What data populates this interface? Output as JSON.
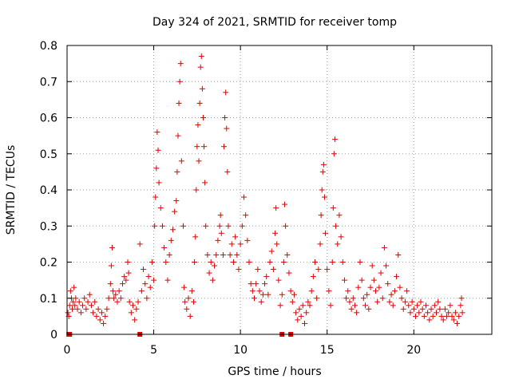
{
  "chart_data": {
    "type": "scatter",
    "title": "Day 324 of 2021, SRMTID for receiver tomp",
    "xlabel": "GPS time / hours",
    "ylabel": "SRMTID / TECUs",
    "xlim": [
      0,
      24.5
    ],
    "ylim": [
      0,
      0.8
    ],
    "xticks": [
      0,
      5,
      10,
      15,
      20
    ],
    "xtick_labels": [
      "0",
      "5",
      "10",
      "15",
      "20"
    ],
    "yticks": [
      0,
      0.1,
      0.2,
      0.3,
      0.4,
      0.5,
      0.6,
      0.7,
      0.8
    ],
    "ytick_labels": [
      "0",
      "0.1",
      "0.2",
      "0.3",
      "0.4",
      "0.5",
      "0.6",
      "0.7",
      "0.8"
    ],
    "grid": true,
    "marker": "plus",
    "color": "#e00000",
    "series": [
      {
        "name": "SRMTID",
        "points": [
          [
            0.05,
            0.06
          ],
          [
            0.1,
            0.05
          ],
          [
            0.15,
            0.08
          ],
          [
            0.2,
            0.12
          ],
          [
            0.25,
            0.1
          ],
          [
            0.3,
            0.07
          ],
          [
            0.35,
            0.09
          ],
          [
            0.4,
            0.13
          ],
          [
            0.45,
            0.08
          ],
          [
            0.5,
            0.1
          ],
          [
            0.6,
            0.07
          ],
          [
            0.7,
            0.09
          ],
          [
            0.8,
            0.06
          ],
          [
            0.9,
            0.08
          ],
          [
            1.0,
            0.1
          ],
          [
            1.1,
            0.07
          ],
          [
            1.2,
            0.09
          ],
          [
            1.3,
            0.11
          ],
          [
            1.4,
            0.08
          ],
          [
            1.5,
            0.06
          ],
          [
            1.6,
            0.09
          ],
          [
            1.7,
            0.05
          ],
          [
            1.8,
            0.07
          ],
          [
            1.9,
            0.04
          ],
          [
            2.0,
            0.06
          ],
          [
            2.1,
            0.03
          ],
          [
            2.2,
            0.05
          ],
          [
            2.3,
            0.07
          ],
          [
            2.4,
            0.1
          ],
          [
            2.5,
            0.14
          ],
          [
            2.55,
            0.19
          ],
          [
            2.6,
            0.24
          ],
          [
            2.65,
            0.12
          ],
          [
            2.7,
            0.1
          ],
          [
            2.8,
            0.11
          ],
          [
            2.9,
            0.09
          ],
          [
            3.0,
            0.12
          ],
          [
            3.1,
            0.1
          ],
          [
            3.2,
            0.14
          ],
          [
            3.3,
            0.16
          ],
          [
            3.4,
            0.15
          ],
          [
            3.5,
            0.2
          ],
          [
            3.55,
            0.17
          ],
          [
            3.6,
            0.09
          ],
          [
            3.7,
            0.06
          ],
          [
            3.8,
            0.08
          ],
          [
            3.9,
            0.04
          ],
          [
            4.0,
            0.07
          ],
          [
            4.1,
            0.09
          ],
          [
            4.2,
            0.25
          ],
          [
            4.3,
            0.12
          ],
          [
            4.4,
            0.18
          ],
          [
            4.5,
            0.14
          ],
          [
            4.6,
            0.1
          ],
          [
            4.7,
            0.16
          ],
          [
            4.8,
            0.13
          ],
          [
            4.9,
            0.2
          ],
          [
            5.0,
            0.15
          ],
          [
            5.05,
            0.3
          ],
          [
            5.1,
            0.38
          ],
          [
            5.15,
            0.46
          ],
          [
            5.2,
            0.56
          ],
          [
            5.25,
            0.51
          ],
          [
            5.3,
            0.42
          ],
          [
            5.4,
            0.35
          ],
          [
            5.5,
            0.3
          ],
          [
            5.6,
            0.24
          ],
          [
            5.7,
            0.2
          ],
          [
            5.8,
            0.15
          ],
          [
            5.9,
            0.22
          ],
          [
            6.0,
            0.26
          ],
          [
            6.1,
            0.29
          ],
          [
            6.2,
            0.34
          ],
          [
            6.3,
            0.37
          ],
          [
            6.35,
            0.45
          ],
          [
            6.4,
            0.55
          ],
          [
            6.45,
            0.64
          ],
          [
            6.5,
            0.7
          ],
          [
            6.55,
            0.75
          ],
          [
            6.6,
            0.48
          ],
          [
            6.7,
            0.3
          ],
          [
            6.75,
            0.13
          ],
          [
            6.8,
            0.09
          ],
          [
            6.9,
            0.07
          ],
          [
            7.0,
            0.1
          ],
          [
            7.1,
            0.05
          ],
          [
            7.2,
            0.12
          ],
          [
            7.3,
            0.09
          ],
          [
            7.35,
            0.2
          ],
          [
            7.4,
            0.27
          ],
          [
            7.45,
            0.4
          ],
          [
            7.5,
            0.52
          ],
          [
            7.55,
            0.58
          ],
          [
            7.6,
            0.48
          ],
          [
            7.65,
            0.64
          ],
          [
            7.7,
            0.74
          ],
          [
            7.75,
            0.77
          ],
          [
            7.8,
            0.68
          ],
          [
            7.85,
            0.6
          ],
          [
            7.9,
            0.52
          ],
          [
            7.95,
            0.42
          ],
          [
            8.0,
            0.3
          ],
          [
            8.1,
            0.22
          ],
          [
            8.2,
            0.17
          ],
          [
            8.3,
            0.2
          ],
          [
            8.4,
            0.15
          ],
          [
            8.5,
            0.19
          ],
          [
            8.6,
            0.22
          ],
          [
            8.7,
            0.26
          ],
          [
            8.8,
            0.3
          ],
          [
            8.85,
            0.33
          ],
          [
            8.9,
            0.28
          ],
          [
            9.0,
            0.22
          ],
          [
            9.05,
            0.52
          ],
          [
            9.1,
            0.6
          ],
          [
            9.15,
            0.67
          ],
          [
            9.2,
            0.57
          ],
          [
            9.25,
            0.45
          ],
          [
            9.3,
            0.3
          ],
          [
            9.4,
            0.22
          ],
          [
            9.5,
            0.25
          ],
          [
            9.6,
            0.2
          ],
          [
            9.7,
            0.27
          ],
          [
            9.8,
            0.22
          ],
          [
            9.9,
            0.18
          ],
          [
            10.0,
            0.25
          ],
          [
            10.1,
            0.3
          ],
          [
            10.2,
            0.38
          ],
          [
            10.3,
            0.33
          ],
          [
            10.4,
            0.26
          ],
          [
            10.5,
            0.2
          ],
          [
            10.6,
            0.14
          ],
          [
            10.7,
            0.12
          ],
          [
            10.8,
            0.1
          ],
          [
            10.9,
            0.14
          ],
          [
            11.0,
            0.18
          ],
          [
            11.1,
            0.12
          ],
          [
            11.2,
            0.09
          ],
          [
            11.3,
            0.11
          ],
          [
            11.4,
            0.14
          ],
          [
            11.5,
            0.16
          ],
          [
            11.6,
            0.11
          ],
          [
            11.7,
            0.2
          ],
          [
            11.8,
            0.23
          ],
          [
            11.9,
            0.18
          ],
          [
            12.0,
            0.28
          ],
          [
            12.05,
            0.35
          ],
          [
            12.1,
            0.25
          ],
          [
            12.2,
            0.15
          ],
          [
            12.3,
            0.08
          ],
          [
            12.4,
            0.11
          ],
          [
            12.5,
            0.2
          ],
          [
            12.55,
            0.36
          ],
          [
            12.6,
            0.3
          ],
          [
            12.7,
            0.22
          ],
          [
            12.8,
            0.17
          ],
          [
            12.9,
            0.12
          ],
          [
            13.0,
            0.09
          ],
          [
            13.1,
            0.11
          ],
          [
            13.2,
            0.06
          ],
          [
            13.3,
            0.04
          ],
          [
            13.4,
            0.07
          ],
          [
            13.5,
            0.05
          ],
          [
            13.6,
            0.08
          ],
          [
            13.7,
            0.03
          ],
          [
            13.8,
            0.06
          ],
          [
            13.9,
            0.09
          ],
          [
            14.0,
            0.08
          ],
          [
            14.1,
            0.12
          ],
          [
            14.2,
            0.16
          ],
          [
            14.3,
            0.2
          ],
          [
            14.4,
            0.1
          ],
          [
            14.5,
            0.18
          ],
          [
            14.6,
            0.25
          ],
          [
            14.65,
            0.33
          ],
          [
            14.7,
            0.4
          ],
          [
            14.75,
            0.45
          ],
          [
            14.8,
            0.47
          ],
          [
            14.85,
            0.38
          ],
          [
            14.9,
            0.28
          ],
          [
            15.0,
            0.18
          ],
          [
            15.1,
            0.12
          ],
          [
            15.2,
            0.08
          ],
          [
            15.3,
            0.2
          ],
          [
            15.35,
            0.35
          ],
          [
            15.4,
            0.5
          ],
          [
            15.45,
            0.54
          ],
          [
            15.5,
            0.3
          ],
          [
            15.6,
            0.25
          ],
          [
            15.7,
            0.33
          ],
          [
            15.8,
            0.27
          ],
          [
            15.9,
            0.2
          ],
          [
            16.0,
            0.15
          ],
          [
            16.1,
            0.1
          ],
          [
            16.2,
            0.12
          ],
          [
            16.3,
            0.09
          ],
          [
            16.4,
            0.07
          ],
          [
            16.5,
            0.1
          ],
          [
            16.6,
            0.08
          ],
          [
            16.7,
            0.06
          ],
          [
            16.8,
            0.13
          ],
          [
            16.9,
            0.2
          ],
          [
            17.0,
            0.15
          ],
          [
            17.1,
            0.1
          ],
          [
            17.2,
            0.08
          ],
          [
            17.3,
            0.11
          ],
          [
            17.4,
            0.07
          ],
          [
            17.5,
            0.13
          ],
          [
            17.6,
            0.19
          ],
          [
            17.7,
            0.15
          ],
          [
            17.8,
            0.12
          ],
          [
            17.9,
            0.09
          ],
          [
            18.0,
            0.13
          ],
          [
            18.1,
            0.17
          ],
          [
            18.2,
            0.1
          ],
          [
            18.3,
            0.24
          ],
          [
            18.4,
            0.19
          ],
          [
            18.5,
            0.14
          ],
          [
            18.6,
            0.09
          ],
          [
            18.7,
            0.11
          ],
          [
            18.8,
            0.08
          ],
          [
            18.9,
            0.12
          ],
          [
            19.0,
            0.16
          ],
          [
            19.1,
            0.22
          ],
          [
            19.2,
            0.13
          ],
          [
            19.3,
            0.1
          ],
          [
            19.4,
            0.07
          ],
          [
            19.5,
            0.09
          ],
          [
            19.6,
            0.12
          ],
          [
            19.7,
            0.08
          ],
          [
            19.8,
            0.06
          ],
          [
            19.9,
            0.09
          ],
          [
            20.0,
            0.07
          ],
          [
            20.1,
            0.05
          ],
          [
            20.2,
            0.08
          ],
          [
            20.3,
            0.06
          ],
          [
            20.4,
            0.09
          ],
          [
            20.5,
            0.07
          ],
          [
            20.6,
            0.05
          ],
          [
            20.7,
            0.08
          ],
          [
            20.8,
            0.06
          ],
          [
            20.9,
            0.04
          ],
          [
            21.0,
            0.07
          ],
          [
            21.1,
            0.05
          ],
          [
            21.2,
            0.08
          ],
          [
            21.3,
            0.06
          ],
          [
            21.4,
            0.09
          ],
          [
            21.5,
            0.07
          ],
          [
            21.6,
            0.05
          ],
          [
            21.7,
            0.04
          ],
          [
            21.8,
            0.07
          ],
          [
            21.9,
            0.05
          ],
          [
            22.0,
            0.06
          ],
          [
            22.1,
            0.08
          ],
          [
            22.2,
            0.05
          ],
          [
            22.3,
            0.04
          ],
          [
            22.4,
            0.06
          ],
          [
            22.5,
            0.03
          ],
          [
            22.6,
            0.05
          ],
          [
            22.7,
            0.08
          ],
          [
            22.75,
            0.1
          ],
          [
            22.8,
            0.06
          ]
        ]
      }
    ],
    "zero_markers": [
      0.1,
      0.15,
      4.2,
      12.4,
      12.9
    ]
  }
}
